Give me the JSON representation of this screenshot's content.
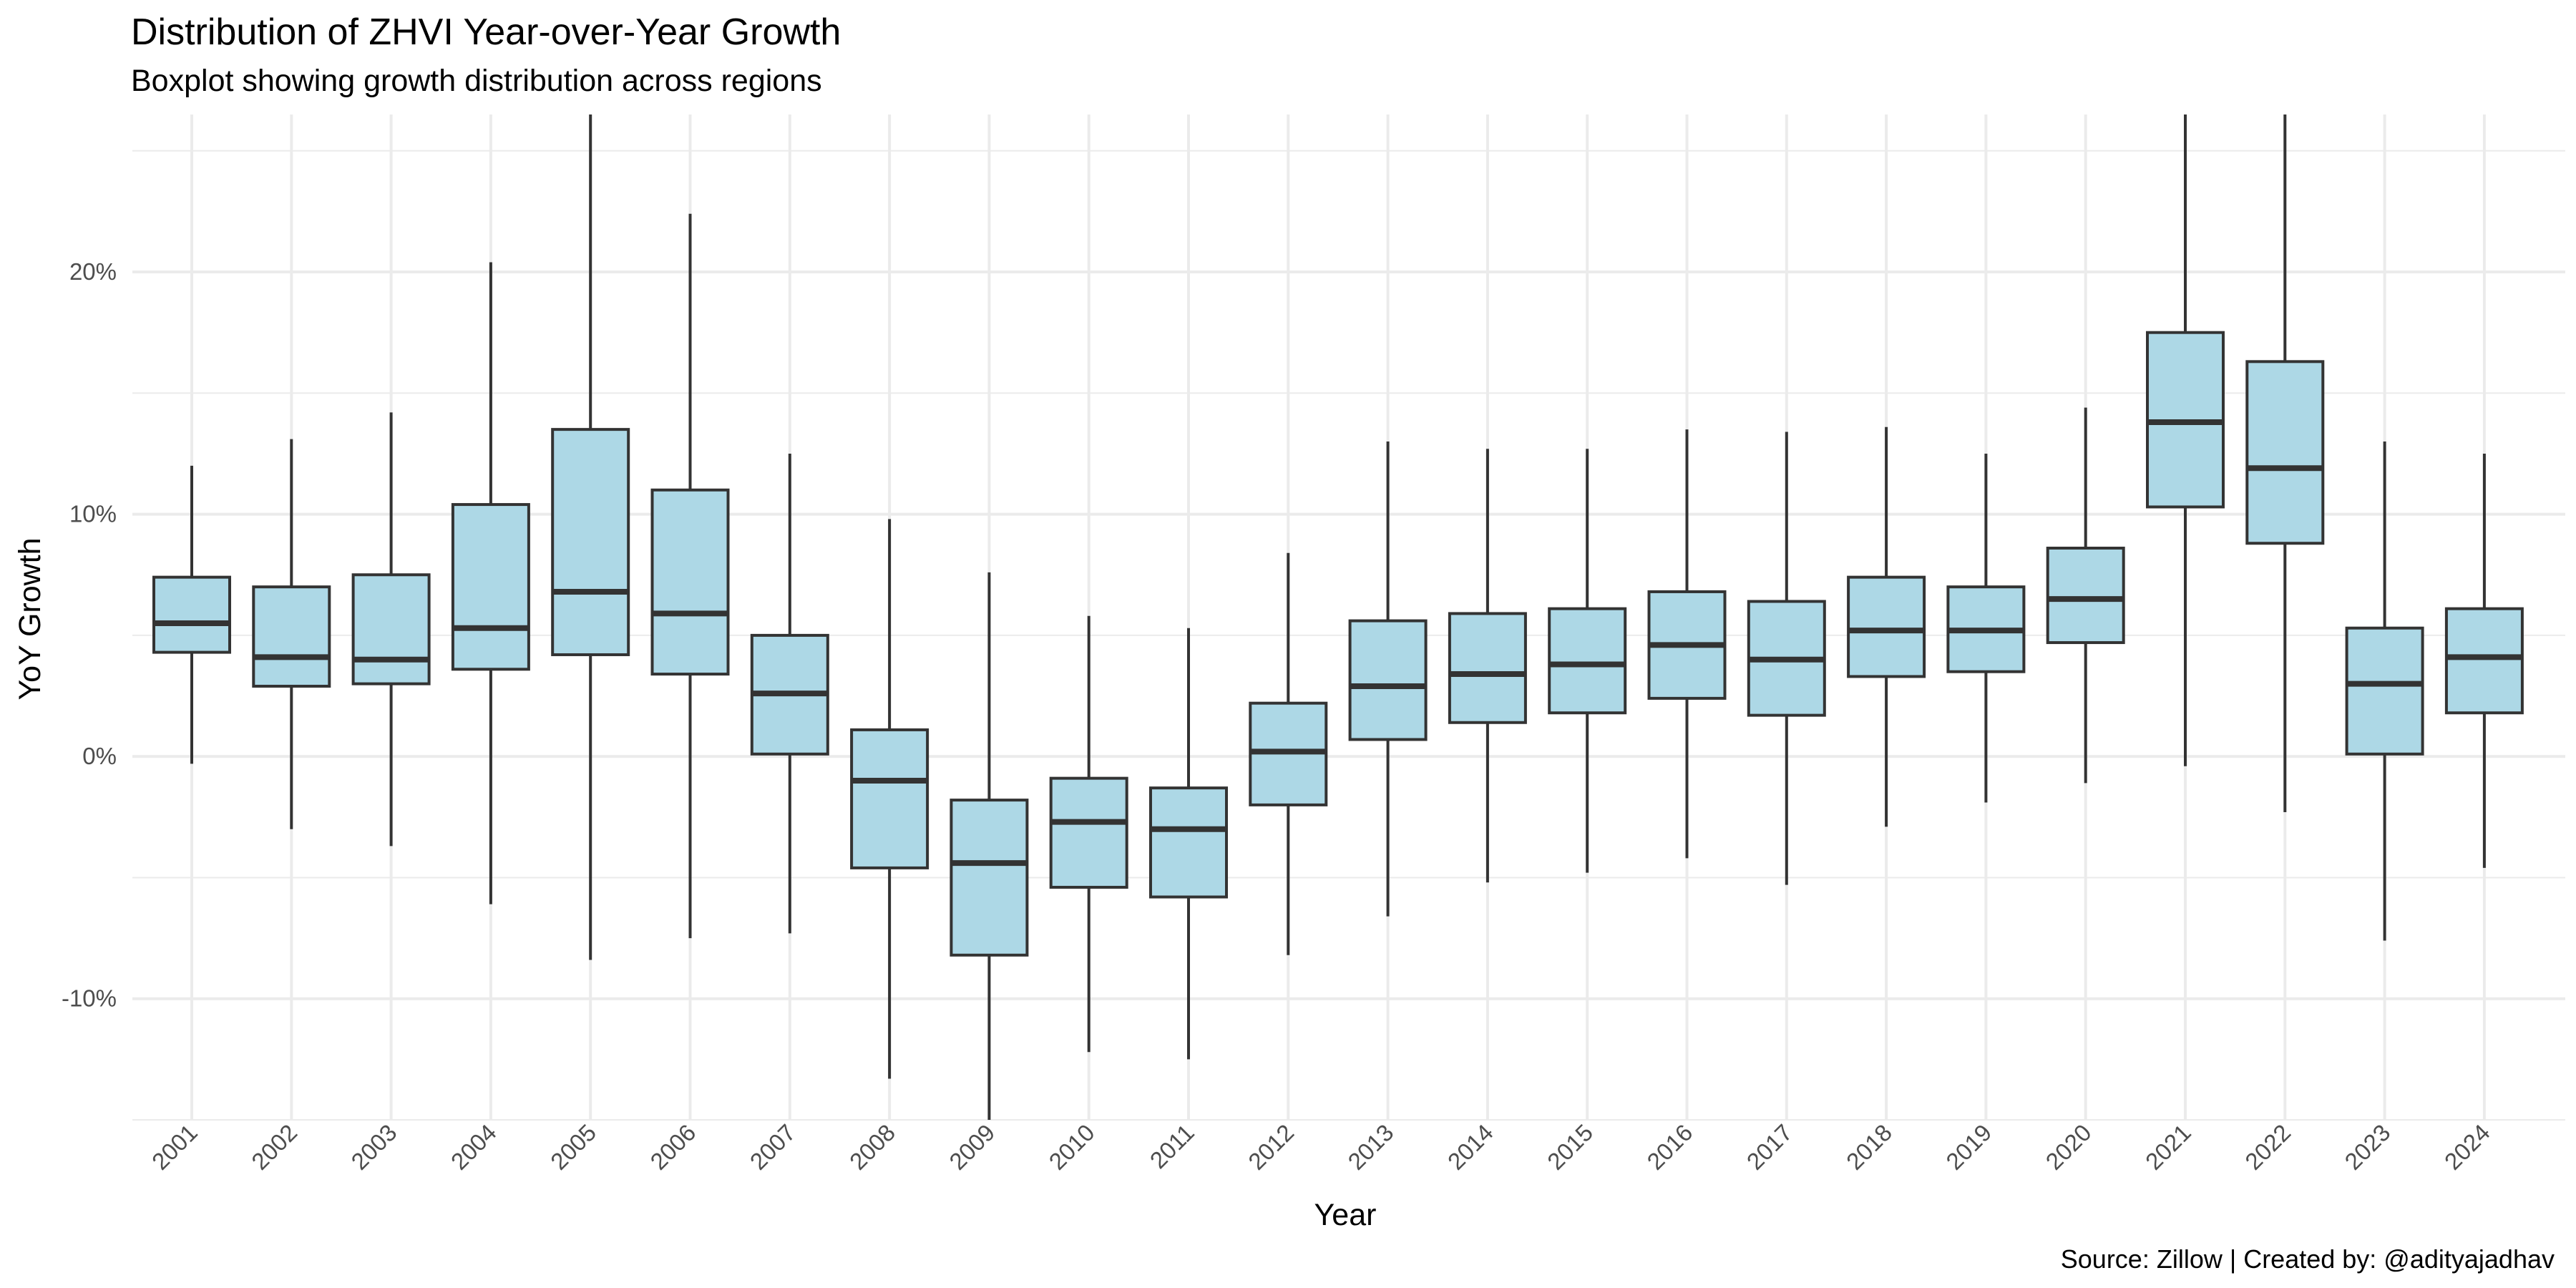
{
  "chart_data": {
    "type": "boxplot",
    "title": "Distribution of ZHVI Year-over-Year Growth",
    "subtitle": "Boxplot showing growth distribution across regions",
    "caption": "Source: Zillow | Created by: @adityajadhav",
    "xlabel": "Year",
    "ylabel": "YoY Growth",
    "ylim": [
      -15,
      26.5
    ],
    "y_ticks": [
      {
        "value": -10,
        "label": "-10%"
      },
      {
        "value": 0,
        "label": "0%"
      },
      {
        "value": 10,
        "label": "10%"
      },
      {
        "value": 20,
        "label": "20%"
      }
    ],
    "grid": true,
    "fill_color": "#add8e6",
    "line_color": "#333333",
    "grid_color": "#ebebeb",
    "categories": [
      "2001",
      "2002",
      "2003",
      "2004",
      "2005",
      "2006",
      "2007",
      "2008",
      "2009",
      "2010",
      "2011",
      "2012",
      "2013",
      "2014",
      "2015",
      "2016",
      "2017",
      "2018",
      "2019",
      "2020",
      "2021",
      "2022",
      "2023",
      "2024"
    ],
    "boxes": [
      {
        "year": "2001",
        "whisker_low": -0.3,
        "q1": 4.3,
        "median": 5.5,
        "q3": 7.4,
        "whisker_high": 12.0
      },
      {
        "year": "2002",
        "whisker_low": -3.0,
        "q1": 2.9,
        "median": 4.1,
        "q3": 7.0,
        "whisker_high": 13.1
      },
      {
        "year": "2003",
        "whisker_low": -3.7,
        "q1": 3.0,
        "median": 4.0,
        "q3": 7.5,
        "whisker_high": 14.2
      },
      {
        "year": "2004",
        "whisker_low": -6.1,
        "q1": 3.6,
        "median": 5.3,
        "q3": 10.4,
        "whisker_high": 20.4
      },
      {
        "year": "2005",
        "whisker_low": -8.4,
        "q1": 4.2,
        "median": 6.8,
        "q3": 13.5,
        "whisker_high": 26.5
      },
      {
        "year": "2006",
        "whisker_low": -7.5,
        "q1": 3.4,
        "median": 5.9,
        "q3": 11.0,
        "whisker_high": 22.4
      },
      {
        "year": "2007",
        "whisker_low": -7.3,
        "q1": 0.1,
        "median": 2.6,
        "q3": 5.0,
        "whisker_high": 12.5
      },
      {
        "year": "2008",
        "whisker_low": -13.3,
        "q1": -4.6,
        "median": -1.0,
        "q3": 1.1,
        "whisker_high": 9.8
      },
      {
        "year": "2009",
        "whisker_low": -15.0,
        "q1": -8.2,
        "median": -4.4,
        "q3": -1.8,
        "whisker_high": 7.6
      },
      {
        "year": "2010",
        "whisker_low": -12.2,
        "q1": -5.4,
        "median": -2.7,
        "q3": -0.9,
        "whisker_high": 5.8
      },
      {
        "year": "2011",
        "whisker_low": -12.5,
        "q1": -5.8,
        "median": -3.0,
        "q3": -1.3,
        "whisker_high": 5.3
      },
      {
        "year": "2012",
        "whisker_low": -8.2,
        "q1": -2.0,
        "median": 0.2,
        "q3": 2.2,
        "whisker_high": 8.4
      },
      {
        "year": "2013",
        "whisker_low": -6.6,
        "q1": 0.7,
        "median": 2.9,
        "q3": 5.6,
        "whisker_high": 13.0
      },
      {
        "year": "2014",
        "whisker_low": -5.2,
        "q1": 1.4,
        "median": 3.4,
        "q3": 5.9,
        "whisker_high": 12.7
      },
      {
        "year": "2015",
        "whisker_low": -4.8,
        "q1": 1.8,
        "median": 3.8,
        "q3": 6.1,
        "whisker_high": 12.7
      },
      {
        "year": "2016",
        "whisker_low": -4.2,
        "q1": 2.4,
        "median": 4.6,
        "q3": 6.8,
        "whisker_high": 13.5
      },
      {
        "year": "2017",
        "whisker_low": -5.3,
        "q1": 1.7,
        "median": 4.0,
        "q3": 6.4,
        "whisker_high": 13.4
      },
      {
        "year": "2018",
        "whisker_low": -2.9,
        "q1": 3.3,
        "median": 5.2,
        "q3": 7.4,
        "whisker_high": 13.6
      },
      {
        "year": "2019",
        "whisker_low": -1.9,
        "q1": 3.5,
        "median": 5.2,
        "q3": 7.0,
        "whisker_high": 12.5
      },
      {
        "year": "2020",
        "whisker_low": -1.1,
        "q1": 4.7,
        "median": 6.5,
        "q3": 8.6,
        "whisker_high": 14.4
      },
      {
        "year": "2021",
        "whisker_low": -0.4,
        "q1": 10.3,
        "median": 13.8,
        "q3": 17.5,
        "whisker_high": 26.5
      },
      {
        "year": "2022",
        "whisker_low": -2.3,
        "q1": 8.8,
        "median": 11.9,
        "q3": 16.3,
        "whisker_high": 26.5
      },
      {
        "year": "2023",
        "whisker_low": -7.6,
        "q1": 0.1,
        "median": 3.0,
        "q3": 5.3,
        "whisker_high": 13.0
      },
      {
        "year": "2024",
        "whisker_low": -4.6,
        "q1": 1.8,
        "median": 4.1,
        "q3": 6.1,
        "whisker_high": 12.5
      }
    ]
  }
}
